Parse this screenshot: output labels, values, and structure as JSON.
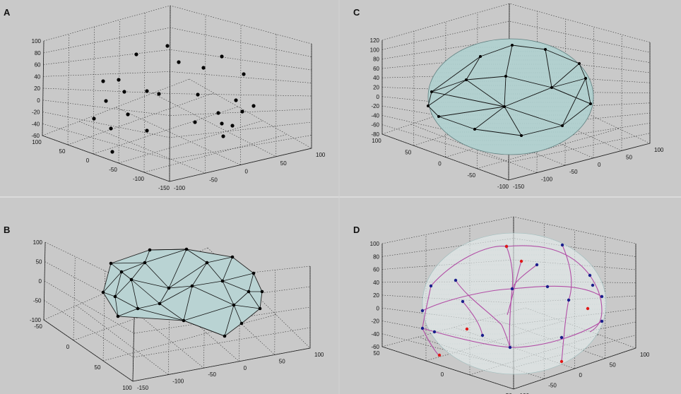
{
  "panels": [
    {
      "label": "A",
      "kind": "scatter",
      "z_ticks": [
        "100",
        "80",
        "60",
        "40",
        "20",
        "0",
        "-20",
        "-40",
        "-60"
      ],
      "left_ticks": [
        "100",
        "50",
        "0",
        "-50",
        "-100",
        "-150"
      ],
      "right_ticks": [
        "100",
        "50",
        "0",
        "-50",
        "-100"
      ]
    },
    {
      "label": "B",
      "kind": "mesh",
      "z_ticks": [
        "100",
        "50",
        "0",
        "-50",
        "-100"
      ],
      "left_ticks": [
        "-50",
        "0",
        "50",
        "100"
      ],
      "right_ticks": [
        "100",
        "50",
        "0",
        "-50",
        "-100",
        "-150"
      ],
      "fill_color": "#b9d3d3"
    },
    {
      "label": "C",
      "kind": "sphere",
      "z_ticks": [
        "120",
        "100",
        "80",
        "60",
        "40",
        "20",
        "0",
        "-20",
        "-40",
        "-60",
        "-80"
      ],
      "left_ticks": [
        "100",
        "50",
        "0",
        "-50",
        "-100"
      ],
      "right_ticks": [
        "100",
        "50",
        "0",
        "-50",
        "-100",
        "-150"
      ],
      "fill_color": "#b2d0cf"
    },
    {
      "label": "D",
      "kind": "curves",
      "z_ticks": [
        "100",
        "80",
        "60",
        "40",
        "20",
        "0",
        "-20",
        "-40",
        "-60"
      ],
      "left_ticks": [
        "50",
        "0",
        "-50"
      ],
      "right_ticks": [
        "100",
        "50",
        "0",
        "-50",
        "-100"
      ],
      "curve_color": "#b24ea6",
      "point_colors": [
        "#1b1e8c",
        "#e01818"
      ]
    }
  ]
}
